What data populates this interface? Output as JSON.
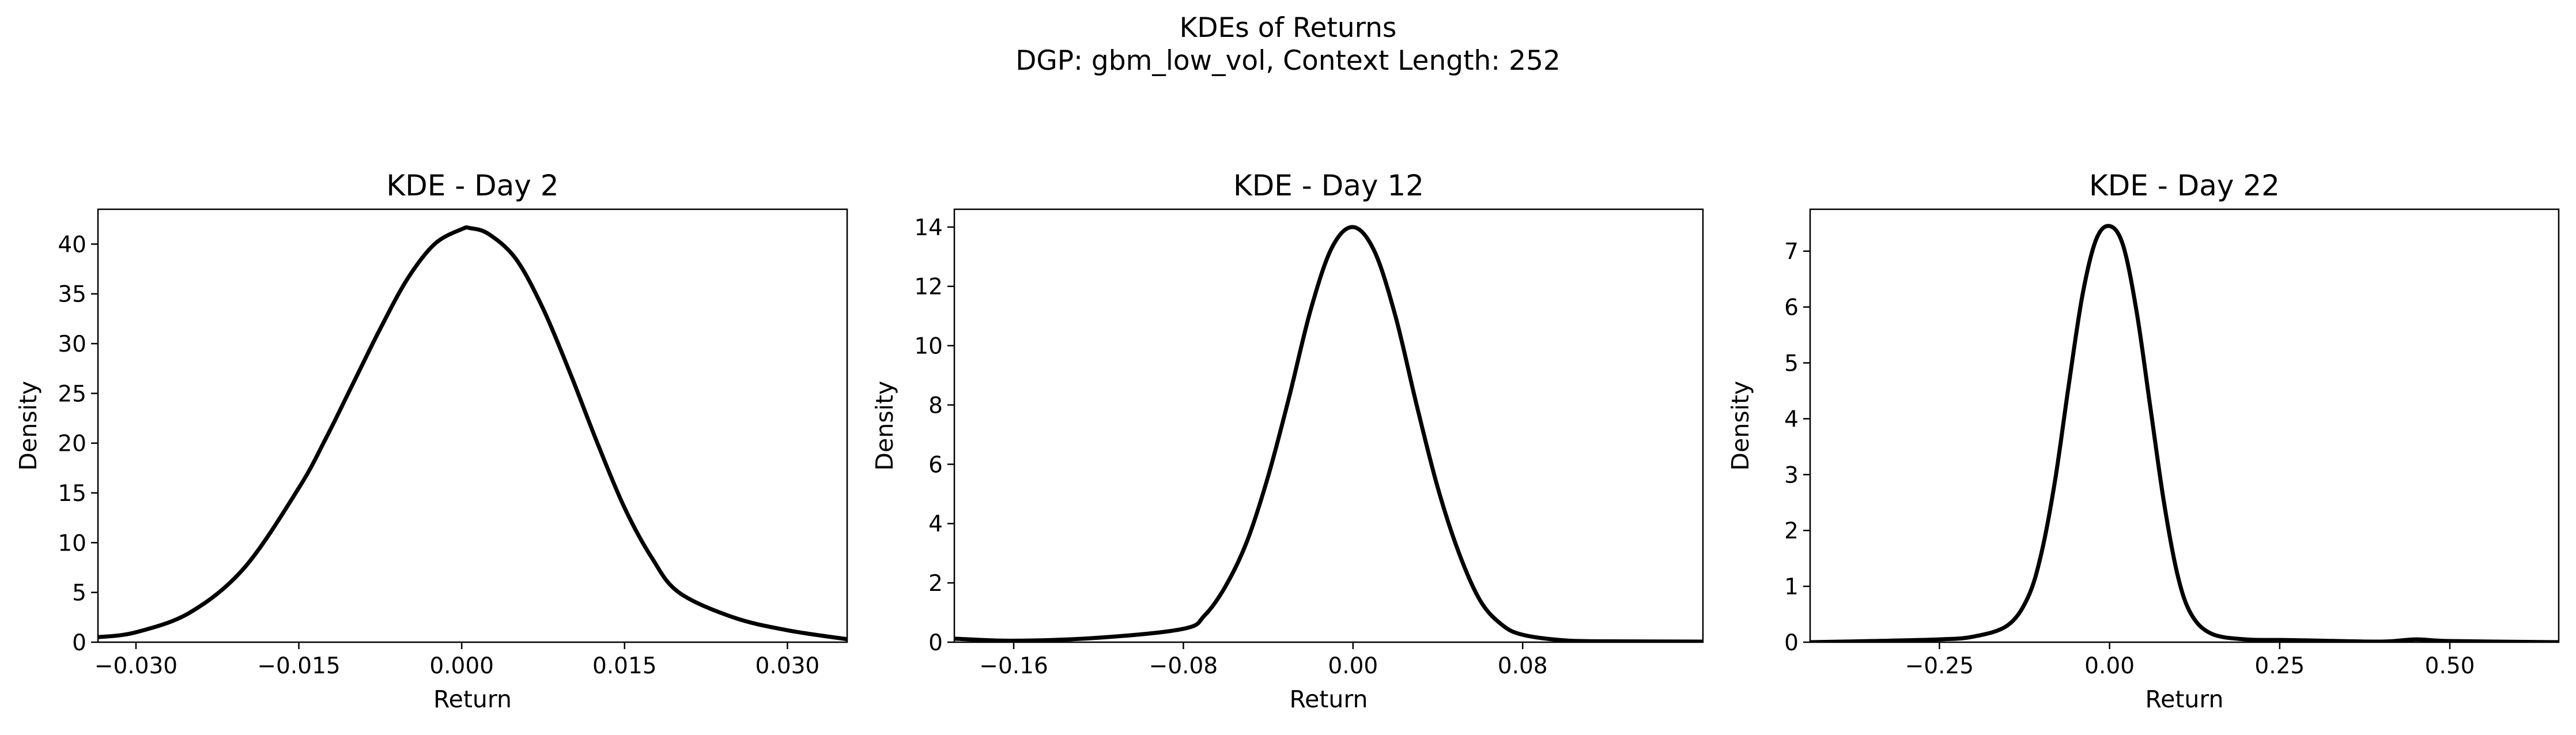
{
  "figure": {
    "title_line1": "KDEs of Returns",
    "title_line2": "DGP: gbm_low_vol, Context Length: 252"
  },
  "chart_data": [
    {
      "type": "line",
      "title": "KDE - Day 2",
      "xlabel": "Return",
      "ylabel": "Density",
      "xlim": [
        -0.0335,
        0.0355
      ],
      "ylim": [
        0,
        43.5
      ],
      "xticks": [
        -0.03,
        -0.015,
        0.0,
        0.015,
        0.03
      ],
      "xtick_labels": [
        "−0.030",
        "−0.015",
        "0.000",
        "0.015",
        "0.030"
      ],
      "yticks": [
        0,
        5,
        10,
        15,
        20,
        25,
        30,
        35,
        40
      ],
      "ytick_labels": [
        "0",
        "5",
        "10",
        "15",
        "20",
        "25",
        "30",
        "35",
        "40"
      ],
      "line_color": "#000000",
      "series": [
        {
          "x": [
            -0.0335,
            -0.03,
            -0.025,
            -0.02,
            -0.015,
            -0.0125,
            -0.01,
            -0.0075,
            -0.005,
            -0.0025,
            0.0,
            0.0008,
            0.0025,
            0.005,
            0.0075,
            0.01,
            0.0125,
            0.015,
            0.0175,
            0.02,
            0.025,
            0.03,
            0.0355
          ],
          "y": [
            0.5,
            1.0,
            3.0,
            7.5,
            15.5,
            20.5,
            26.0,
            31.5,
            36.5,
            40.0,
            41.5,
            41.6,
            41.0,
            38.5,
            33.5,
            27.0,
            20.0,
            13.5,
            8.5,
            5.0,
            2.5,
            1.2,
            0.3
          ]
        }
      ]
    },
    {
      "type": "line",
      "title": "KDE - Day 12",
      "xlabel": "Return",
      "ylabel": "Density",
      "xlim": [
        -0.188,
        0.165
      ],
      "ylim": [
        0,
        14.6
      ],
      "xticks": [
        -0.16,
        -0.08,
        0.0,
        0.08
      ],
      "xtick_labels": [
        "−0.16",
        "−0.08",
        "0.00",
        "0.08"
      ],
      "yticks": [
        0,
        2,
        4,
        6,
        8,
        10,
        12,
        14
      ],
      "ytick_labels": [
        "0",
        "2",
        "4",
        "6",
        "8",
        "10",
        "12",
        "14"
      ],
      "line_color": "#000000",
      "series": [
        {
          "x": [
            -0.188,
            -0.16,
            -0.12,
            -0.08,
            -0.07,
            -0.06,
            -0.05,
            -0.04,
            -0.03,
            -0.02,
            -0.01,
            0.0,
            0.01,
            0.02,
            0.03,
            0.04,
            0.05,
            0.06,
            0.07,
            0.08,
            0.1,
            0.12,
            0.165
          ],
          "y": [
            0.12,
            0.05,
            0.15,
            0.45,
            0.9,
            1.9,
            3.4,
            5.6,
            8.3,
            11.2,
            13.3,
            14.0,
            13.2,
            11.0,
            8.0,
            5.2,
            3.0,
            1.4,
            0.6,
            0.25,
            0.06,
            0.03,
            0.02
          ]
        }
      ]
    },
    {
      "type": "line",
      "title": "KDE - Day 22",
      "xlabel": "Return",
      "ylabel": "Density",
      "xlim": [
        -0.44,
        0.66
      ],
      "ylim": [
        0,
        7.75
      ],
      "xticks": [
        -0.25,
        0.0,
        0.25,
        0.5
      ],
      "xtick_labels": [
        "−0.25",
        "0.00",
        "0.25",
        "0.50"
      ],
      "yticks": [
        0,
        1,
        2,
        3,
        4,
        5,
        6,
        7
      ],
      "ytick_labels": [
        "0",
        "1",
        "2",
        "3",
        "4",
        "5",
        "6",
        "7"
      ],
      "line_color": "#000000",
      "series": [
        {
          "x": [
            -0.44,
            -0.35,
            -0.25,
            -0.2,
            -0.15,
            -0.12,
            -0.1,
            -0.08,
            -0.06,
            -0.04,
            -0.02,
            0.0,
            0.02,
            0.04,
            0.06,
            0.08,
            0.1,
            0.12,
            0.15,
            0.2,
            0.25,
            0.3,
            0.4,
            0.45,
            0.5,
            0.66
          ],
          "y": [
            0.0,
            0.02,
            0.05,
            0.1,
            0.3,
            0.8,
            1.6,
            2.9,
            4.6,
            6.2,
            7.2,
            7.45,
            7.1,
            5.9,
            4.2,
            2.5,
            1.2,
            0.5,
            0.15,
            0.05,
            0.04,
            0.03,
            0.01,
            0.05,
            0.02,
            0.0
          ]
        }
      ]
    }
  ]
}
